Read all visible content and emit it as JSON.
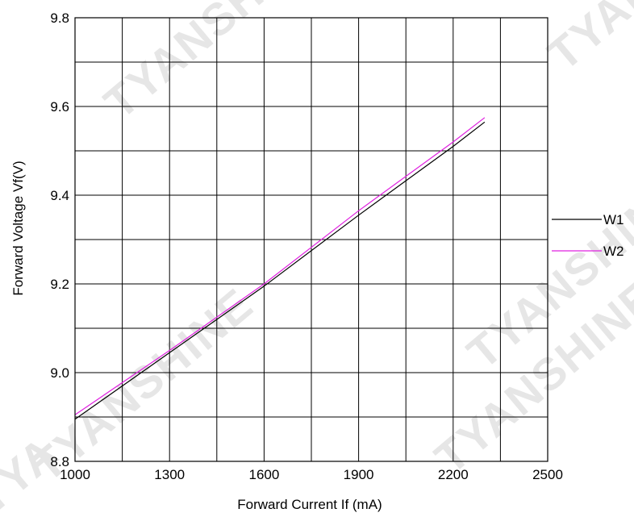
{
  "chart_data": {
    "type": "line",
    "xlabel": "Forward Current  If (mA)",
    "ylabel": "Forward Voltage Vf(V)",
    "xlim": [
      1000,
      2500
    ],
    "ylim": [
      8.8,
      9.8
    ],
    "x_ticks": [
      "1000",
      "1300",
      "1600",
      "1900",
      "2200",
      "2500"
    ],
    "x_tick_values": [
      1000,
      1300,
      1600,
      1900,
      2200,
      2500
    ],
    "y_ticks": [
      "8.8",
      "9.0",
      "9.2",
      "9.4",
      "9.6",
      "9.8"
    ],
    "y_tick_values": [
      8.8,
      9.0,
      9.2,
      9.4,
      9.6,
      9.8
    ],
    "x_grid_step": 150,
    "y_grid_step": 0.1,
    "grid": true,
    "legend": "right",
    "series": [
      {
        "name": "W1",
        "color": "#000000",
        "x": [
          1000,
          1300,
          1600,
          1900,
          2200,
          2300
        ],
        "y": [
          8.895,
          9.045,
          9.195,
          9.355,
          9.51,
          9.565
        ]
      },
      {
        "name": "W2",
        "color": "#e020e0",
        "x": [
          1000,
          1300,
          1600,
          1900,
          2200,
          2300
        ],
        "y": [
          8.905,
          9.05,
          9.2,
          9.365,
          9.52,
          9.575
        ]
      }
    ]
  },
  "watermarks": [
    "TYANSHINE",
    "TYANSHINE",
    "TYANSHINE",
    "TYAN",
    "TYANSHINE",
    "TYA"
  ]
}
